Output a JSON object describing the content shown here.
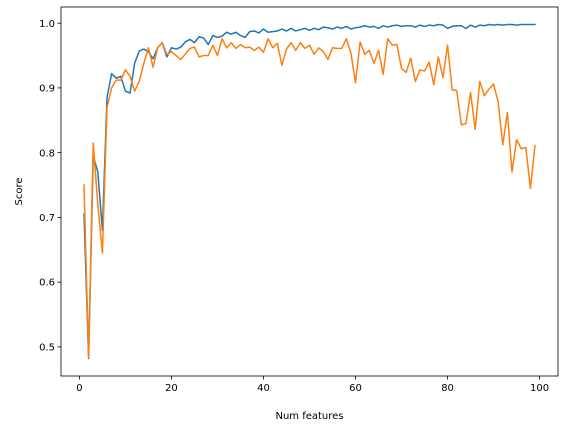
{
  "chart_data": {
    "type": "line",
    "title": "",
    "xlabel": "Num features",
    "ylabel": "Score",
    "xlim": [
      -4,
      104
    ],
    "ylim": [
      0.455,
      1.025
    ],
    "xticks": [
      0,
      20,
      40,
      60,
      80,
      100
    ],
    "xtick_labels": [
      "0",
      "20",
      "40",
      "60",
      "80",
      "100"
    ],
    "yticks": [
      0.5,
      0.6,
      0.7,
      0.8,
      0.9,
      1.0
    ],
    "ytick_labels": [
      "0.5",
      "0.6",
      "0.7",
      "0.8",
      "0.9",
      "1.0"
    ],
    "grid": false,
    "legend": false,
    "x": [
      1,
      2,
      3,
      4,
      5,
      6,
      7,
      8,
      9,
      10,
      11,
      12,
      13,
      14,
      15,
      16,
      17,
      18,
      19,
      20,
      21,
      22,
      23,
      24,
      25,
      26,
      27,
      28,
      29,
      30,
      31,
      32,
      33,
      34,
      35,
      36,
      37,
      38,
      39,
      40,
      41,
      42,
      43,
      44,
      45,
      46,
      47,
      48,
      49,
      50,
      51,
      52,
      53,
      54,
      55,
      56,
      57,
      58,
      59,
      60,
      61,
      62,
      63,
      64,
      65,
      66,
      67,
      68,
      69,
      70,
      71,
      72,
      73,
      74,
      75,
      76,
      77,
      78,
      79,
      80,
      81,
      82,
      83,
      84,
      85,
      86,
      87,
      88,
      89,
      90,
      91,
      92,
      93,
      94,
      95,
      96,
      97,
      98,
      99
    ],
    "series": [
      {
        "color": "#1f77b4",
        "values": [
          0.705,
          0.482,
          0.795,
          0.77,
          0.68,
          0.885,
          0.922,
          0.915,
          0.918,
          0.895,
          0.892,
          0.938,
          0.957,
          0.96,
          0.956,
          0.945,
          0.962,
          0.97,
          0.948,
          0.962,
          0.96,
          0.963,
          0.971,
          0.975,
          0.97,
          0.979,
          0.977,
          0.967,
          0.981,
          0.978,
          0.98,
          0.986,
          0.983,
          0.986,
          0.981,
          0.978,
          0.987,
          0.988,
          0.985,
          0.991,
          0.986,
          0.987,
          0.988,
          0.991,
          0.988,
          0.992,
          0.988,
          0.99,
          0.992,
          0.989,
          0.992,
          0.99,
          0.994,
          0.993,
          0.991,
          0.994,
          0.992,
          0.995,
          0.991,
          0.993,
          0.994,
          0.996,
          0.994,
          0.995,
          0.992,
          0.996,
          0.994,
          0.996,
          0.997,
          0.995,
          0.996,
          0.996,
          0.994,
          0.997,
          0.995,
          0.997,
          0.996,
          0.998,
          0.997,
          0.992,
          0.995,
          0.996,
          0.996,
          0.992,
          0.997,
          0.994,
          0.997,
          0.996,
          0.998,
          0.997,
          0.998,
          0.997,
          0.998,
          0.998,
          0.997,
          0.998,
          0.998,
          0.998,
          0.998
        ]
      },
      {
        "color": "#ff7f0e",
        "values": [
          0.75,
          0.483,
          0.815,
          0.72,
          0.645,
          0.87,
          0.9,
          0.912,
          0.912,
          0.928,
          0.918,
          0.895,
          0.91,
          0.938,
          0.962,
          0.932,
          0.962,
          0.97,
          0.952,
          0.956,
          0.95,
          0.944,
          0.952,
          0.961,
          0.963,
          0.948,
          0.95,
          0.95,
          0.966,
          0.95,
          0.976,
          0.962,
          0.97,
          0.961,
          0.967,
          0.962,
          0.963,
          0.958,
          0.963,
          0.955,
          0.976,
          0.962,
          0.969,
          0.935,
          0.96,
          0.97,
          0.958,
          0.97,
          0.961,
          0.966,
          0.952,
          0.962,
          0.956,
          0.944,
          0.962,
          0.961,
          0.961,
          0.976,
          0.954,
          0.908,
          0.971,
          0.952,
          0.958,
          0.938,
          0.958,
          0.921,
          0.976,
          0.966,
          0.967,
          0.93,
          0.924,
          0.946,
          0.91,
          0.928,
          0.926,
          0.94,
          0.905,
          0.948,
          0.916,
          0.966,
          0.897,
          0.896,
          0.843,
          0.845,
          0.893,
          0.836,
          0.91,
          0.888,
          0.898,
          0.906,
          0.878,
          0.812,
          0.862,
          0.77,
          0.82,
          0.806,
          0.808,
          0.745,
          0.811
        ]
      }
    ]
  }
}
